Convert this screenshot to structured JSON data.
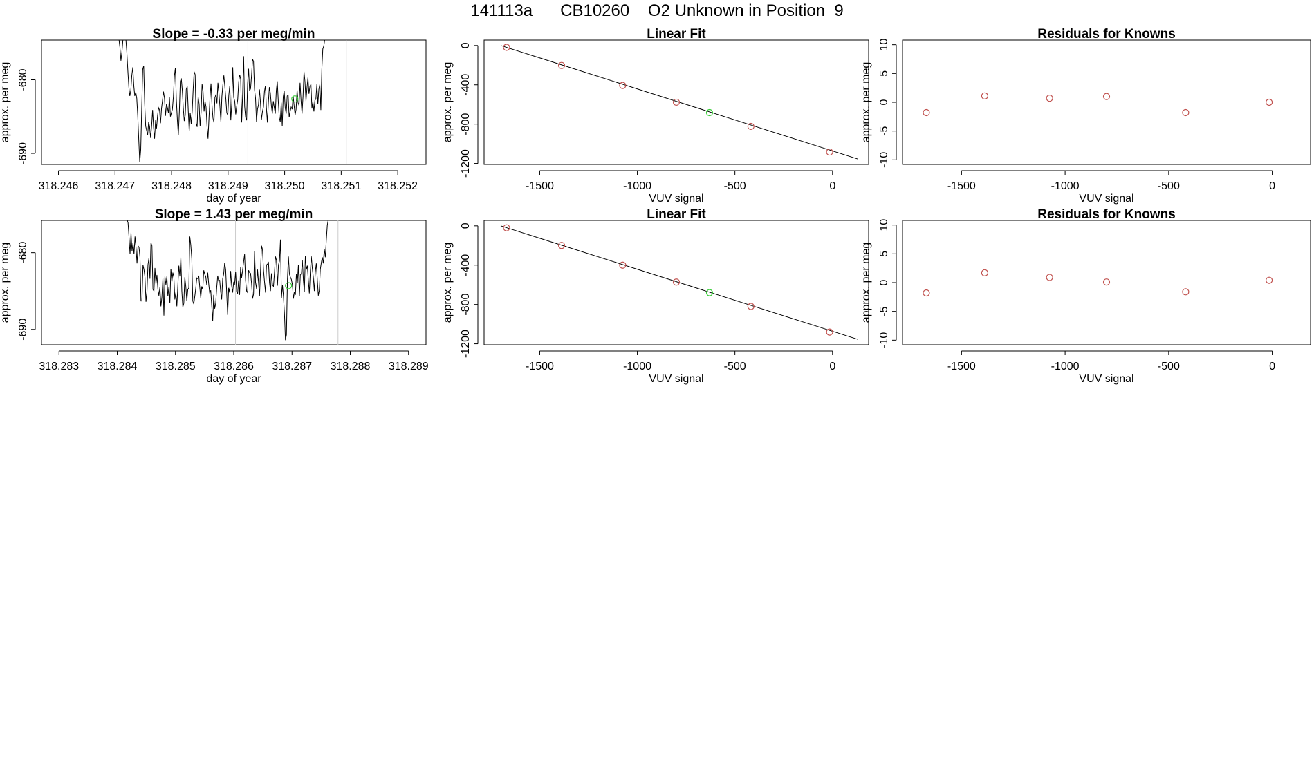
{
  "page_title": "141113a      CB10260    O2 Unknown in Position  9",
  "colors": {
    "trace": "#000000",
    "known": "#c0504d",
    "unknown": "#33cc33",
    "marker": "#cccccc",
    "frame": "#000000"
  },
  "chart_data": [
    {
      "type": "line",
      "title": "Slope =  -0.33  per meg/min",
      "xlabel": "day of year",
      "ylabel": "approx. per meg",
      "xlim": [
        318.2457,
        318.2525
      ],
      "ylim": [
        -691.5,
        -674.6
      ],
      "xticks": [
        "318.246",
        "318.247",
        "318.248",
        "318.249",
        "318.250",
        "318.251",
        "318.252"
      ],
      "yticks": [
        "-680",
        "-690"
      ],
      "series": [
        {
          "x_start": 318.247,
          "x_step": 1.75e-05,
          "values": [
            -674.5,
            -674.5,
            -674.5,
            -674.5,
            -674.5,
            -675.6,
            -677.4,
            -676.2,
            -674.6,
            -674.5,
            -674.5,
            -674.5,
            -676.3,
            -678.8,
            -681.0,
            -682.2,
            -681.4,
            -679.4,
            -678.3,
            -680.8,
            -682.2,
            -681.7,
            -682.5,
            -684.9,
            -688.1,
            -691.2,
            -689.5,
            -683.9,
            -678.6,
            -678.1,
            -683.2,
            -686.3,
            -686.9,
            -687.5,
            -685.7,
            -686.4,
            -687.9,
            -686.3,
            -684.1,
            -686.5,
            -688.0,
            -685.5,
            -686.6,
            -684.9,
            -683.8,
            -684.1,
            -685.9,
            -683.9,
            -682.8,
            -681.6,
            -682.5,
            -684.9,
            -683.3,
            -683.8,
            -684.5,
            -682.4,
            -685.0,
            -684.5,
            -684.0,
            -682.3,
            -679.5,
            -678.4,
            -682.7,
            -685.4,
            -687.5,
            -684.4,
            -680.2,
            -679.8,
            -681.4,
            -683.8,
            -685.6,
            -684.8,
            -681.3,
            -680.9,
            -684.1,
            -687.0,
            -684.5,
            -686.0,
            -684.3,
            -681.3,
            -678.9,
            -679.3,
            -685.9,
            -686.4,
            -682.3,
            -683.3,
            -686.3,
            -684.4,
            -680.6,
            -681.6,
            -684.3,
            -682.9,
            -683.7,
            -686.3,
            -688.0,
            -685.1,
            -682.4,
            -680.5,
            -683.4,
            -685.2,
            -685.8,
            -682.4,
            -682.0,
            -683.2,
            -680.4,
            -681.8,
            -683.6,
            -685.7,
            -682.3,
            -680.7,
            -679.4,
            -680.9,
            -682.6,
            -684.5,
            -684.8,
            -682.1,
            -680.8,
            -685.5,
            -683.2,
            -678.3,
            -682.4,
            -682.9,
            -684.7,
            -683.6,
            -682.7,
            -680.3,
            -679.3,
            -679.9,
            -685.8,
            -681.9,
            -676.8,
            -683.6,
            -685.1,
            -685.5,
            -680.5,
            -678.5,
            -681.5,
            -681.2,
            -679.4,
            -677.2,
            -677.5,
            -681.3,
            -682.5,
            -685.7,
            -684.0,
            -683.4,
            -681.3,
            -683.1,
            -685.4,
            -684.3,
            -683.7,
            -681.6,
            -680.8,
            -683.8,
            -685.8,
            -683.1,
            -681.0,
            -681.8,
            -683.5,
            -684.6,
            -682.9,
            -683.8,
            -684.6,
            -681.5,
            -680.2,
            -682.9,
            -685.1,
            -685.7,
            -683.1,
            -686.3,
            -682.3,
            -681.5,
            -683.8,
            -684.6,
            -682.2,
            -682.1,
            -685.1,
            -684.3,
            -683.7,
            -684.0,
            -682.2,
            -683.5,
            -684.8,
            -684.0,
            -681.4,
            -683.1,
            -683.5,
            -680.4,
            -682.8,
            -684.6,
            -682.3,
            -678.9,
            -680.3,
            -682.9,
            -681.1,
            -679.7,
            -681.9,
            -680.9,
            -680.6,
            -683.9,
            -683.0,
            -684.3,
            -682.8,
            -682.6,
            -680.6,
            -683.3,
            -681.3,
            -680.6,
            -684.1,
            -678.6,
            -675.8,
            -675.4,
            -674.5,
            -674.5
          ]
        }
      ],
      "highlight_point": {
        "x": 318.25018,
        "y": -682.6
      },
      "vlines": [
        318.24935,
        318.25109
      ]
    },
    {
      "type": "scatter",
      "title": "Linear Fit",
      "xlabel": "VUV signal",
      "ylabel": "approx. per meg",
      "xlim": [
        -1785,
        185
      ],
      "ylim": [
        -1210,
        55
      ],
      "xticks": [
        "-1500",
        "-1000",
        "-500",
        "0"
      ],
      "yticks": [
        "0",
        "-400",
        "-800",
        "-1200"
      ],
      "fit_line": {
        "x": [
          -1700,
          130
        ],
        "y": [
          0,
          -1155
        ]
      },
      "known_points": [
        {
          "x": -1670,
          "y": -19
        },
        {
          "x": -1388,
          "y": -203
        },
        {
          "x": -1075,
          "y": -406
        },
        {
          "x": -800,
          "y": -577
        },
        {
          "x": -418,
          "y": -823
        },
        {
          "x": -15,
          "y": -1084
        }
      ],
      "unknown_points": [
        {
          "x": -630,
          "y": -683
        }
      ]
    },
    {
      "type": "scatter",
      "title": "Residuals for Knowns",
      "xlabel": "VUV signal",
      "ylabel": "approx. per meg",
      "xlim": [
        -1785,
        185
      ],
      "ylim": [
        -10.8,
        10.8
      ],
      "xticks": [
        "-1500",
        "-1000",
        "-500",
        "0"
      ],
      "yticks": [
        "10",
        "5",
        "0",
        "-5",
        "-10"
      ],
      "known_points": [
        {
          "x": -1670,
          "y": -1.8
        },
        {
          "x": -1388,
          "y": 1.1
        },
        {
          "x": -1075,
          "y": 0.7
        },
        {
          "x": -800,
          "y": 1.0
        },
        {
          "x": -418,
          "y": -1.8
        },
        {
          "x": -15,
          "y": 0.0
        }
      ]
    },
    {
      "type": "line",
      "title": "Slope =  1.43  per meg/min",
      "xlabel": "day of year",
      "ylabel": "approx. per meg",
      "xlim": [
        318.2827,
        318.2893
      ],
      "ylim": [
        -692.0,
        -675.8
      ],
      "xticks": [
        "318.283",
        "318.284",
        "318.285",
        "318.286",
        "318.287",
        "318.288",
        "318.289"
      ],
      "yticks": [
        "-680",
        "-690"
      ],
      "series": [
        {
          "x_start": 318.2841,
          "x_step": 1.71e-05,
          "values": [
            -675.7,
            -675.7,
            -675.7,
            -675.7,
            -675.7,
            -676.1,
            -678.0,
            -680.2,
            -677.4,
            -679.8,
            -678.7,
            -680.2,
            -677.9,
            -679.3,
            -681.4,
            -679.1,
            -679.3,
            -680.6,
            -686.3,
            -686.3,
            -681.6,
            -682.2,
            -683.2,
            -686.4,
            -685.1,
            -681.6,
            -680.7,
            -683.4,
            -678.7,
            -679.1,
            -684.8,
            -685.0,
            -682.0,
            -684.1,
            -682.9,
            -684.8,
            -685.6,
            -684.5,
            -687.0,
            -685.8,
            -683.3,
            -688.2,
            -683.1,
            -684.2,
            -683.1,
            -685.7,
            -684.5,
            -686.6,
            -682.1,
            -683.8,
            -682.6,
            -683.2,
            -686.1,
            -685.2,
            -687.0,
            -684.3,
            -681.7,
            -683.1,
            -680.6,
            -685.0,
            -687.1,
            -686.6,
            -683.2,
            -684.4,
            -686.3,
            -684.8,
            -684.6,
            -677.9,
            -679.0,
            -680.8,
            -686.3,
            -686.7,
            -685.7,
            -684.6,
            -683.3,
            -683.4,
            -683.0,
            -684.5,
            -685.9,
            -684.4,
            -684.8,
            -682.3,
            -682.8,
            -683.1,
            -684.2,
            -682.6,
            -684.1,
            -685.3,
            -684.9,
            -686.9,
            -688.9,
            -685.5,
            -687.3,
            -686.6,
            -684.6,
            -683.0,
            -683.7,
            -683.6,
            -685.1,
            -686.1,
            -683.4,
            -682.8,
            -681.3,
            -682.2,
            -685.2,
            -688.1,
            -684.6,
            -685.2,
            -682.4,
            -684.3,
            -685.2,
            -683.9,
            -684.1,
            -682.5,
            -685.1,
            -685.3,
            -683.6,
            -685.5,
            -681.9,
            -683.3,
            -682.3,
            -681.2,
            -680.2,
            -683.6,
            -685.0,
            -685.2,
            -682.3,
            -682.6,
            -682.7,
            -684.0,
            -686.0,
            -685.4,
            -679.8,
            -683.9,
            -684.7,
            -682.2,
            -683.9,
            -685.7,
            -682.3,
            -679.1,
            -679.6,
            -682.3,
            -683.8,
            -685.2,
            -681.6,
            -681.5,
            -681.3,
            -683.9,
            -685.0,
            -682.7,
            -684.2,
            -684.4,
            -682.6,
            -680.5,
            -681.0,
            -684.3,
            -681.6,
            -681.1,
            -678.3,
            -685.9,
            -684.2,
            -685.7,
            -687.9,
            -691.4,
            -690.7,
            -683.5,
            -680.5,
            -682.8,
            -683.2,
            -683.5,
            -684.2,
            -686.0,
            -685.1,
            -685.5,
            -682.8,
            -683.9,
            -681.6,
            -685.7,
            -682.8,
            -682.8,
            -681.0,
            -683.6,
            -685.1,
            -680.4,
            -682.2,
            -681.7,
            -683.6,
            -685.3,
            -682.4,
            -680.5,
            -682.1,
            -683.2,
            -685.0,
            -682.5,
            -681.4,
            -683.5,
            -685.6,
            -684.9,
            -682.2,
            -681.3,
            -680.6,
            -681.4,
            -679.5,
            -680.6,
            -678.4,
            -676.4,
            -675.7,
            -675.7
          ]
        }
      ],
      "highlight_point": {
        "x": 318.28694,
        "y": -684.3
      },
      "vlines": [
        318.28603,
        318.28779
      ]
    },
    {
      "type": "scatter",
      "title": "Linear Fit",
      "xlabel": "VUV signal",
      "ylabel": "approx. per meg",
      "xlim": [
        -1785,
        185
      ],
      "ylim": [
        -1210,
        55
      ],
      "xticks": [
        "-1500",
        "-1000",
        "-500",
        "0"
      ],
      "yticks": [
        "0",
        "-400",
        "-800",
        "-1200"
      ],
      "fit_line": {
        "x": [
          -1700,
          130
        ],
        "y": [
          0,
          -1155
        ]
      },
      "known_points": [
        {
          "x": -1670,
          "y": -20
        },
        {
          "x": -1388,
          "y": -200
        },
        {
          "x": -1075,
          "y": -400
        },
        {
          "x": -800,
          "y": -572
        },
        {
          "x": -418,
          "y": -820
        },
        {
          "x": -15,
          "y": -1081
        }
      ],
      "unknown_points": [
        {
          "x": -630,
          "y": -680
        }
      ]
    },
    {
      "type": "scatter",
      "title": "Residuals for Knowns",
      "xlabel": "VUV signal",
      "ylabel": "approx. per meg",
      "xlim": [
        -1785,
        185
      ],
      "ylim": [
        -10.8,
        10.8
      ],
      "xticks": [
        "-1500",
        "-1000",
        "-500",
        "0"
      ],
      "yticks": [
        "10",
        "5",
        "0",
        "-5",
        "-10"
      ],
      "known_points": [
        {
          "x": -1670,
          "y": -1.8
        },
        {
          "x": -1388,
          "y": 1.7
        },
        {
          "x": -1075,
          "y": 0.9
        },
        {
          "x": -800,
          "y": 0.1
        },
        {
          "x": -418,
          "y": -1.6
        },
        {
          "x": -15,
          "y": 0.4
        }
      ]
    }
  ]
}
